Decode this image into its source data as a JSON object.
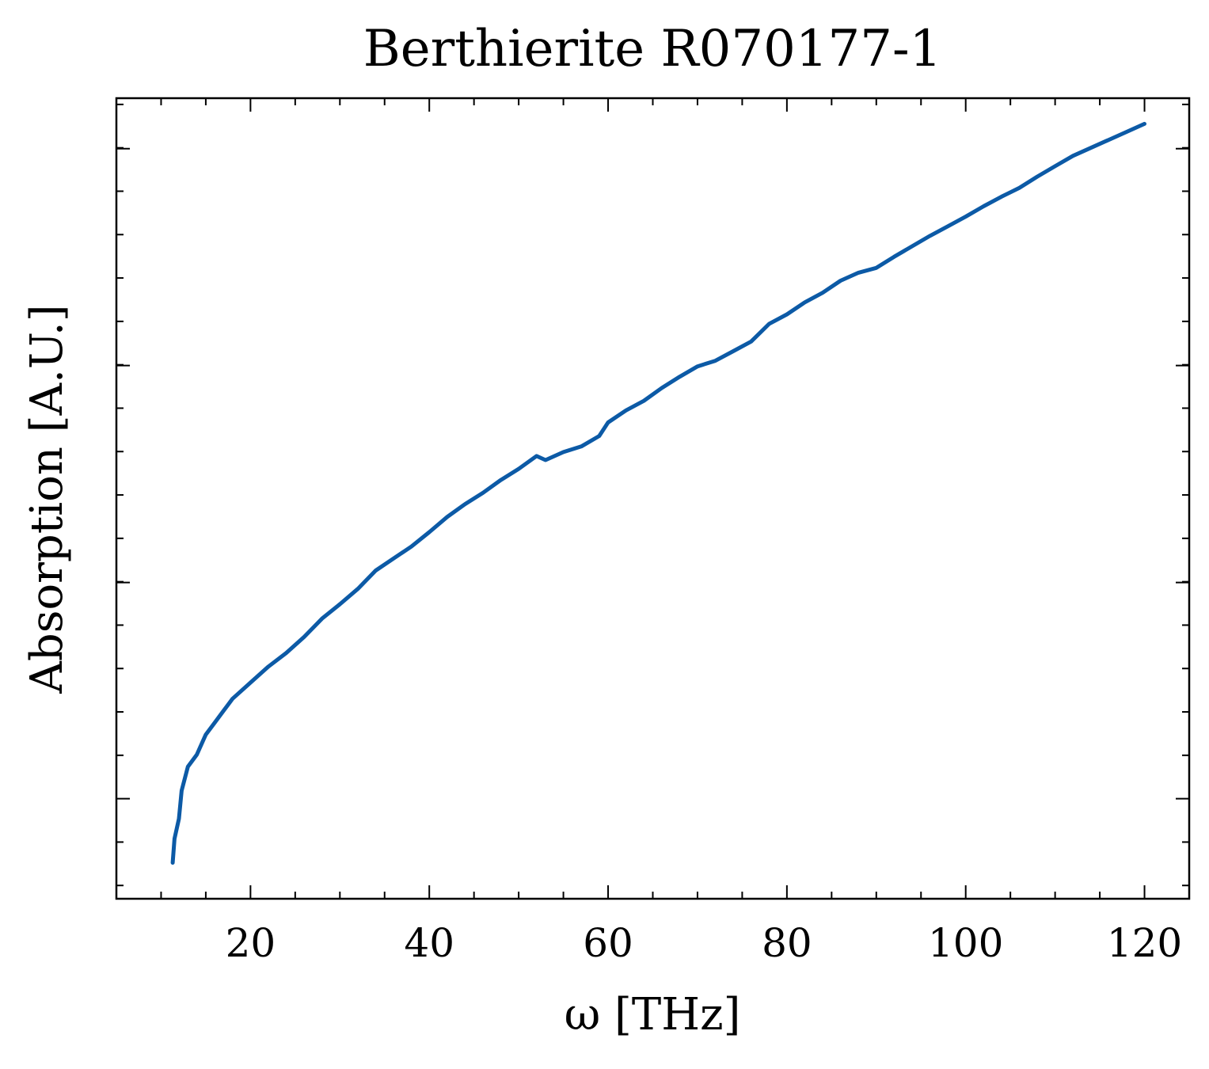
{
  "chart_data": {
    "type": "line",
    "title": "Berthierite R070177-1",
    "xlabel": "ω [THz]",
    "ylabel": "Absorption [A.U.]",
    "xlim": [
      5,
      125
    ],
    "ylim": [
      0.0,
      1.0
    ],
    "xticks": [
      20,
      40,
      60,
      80,
      100,
      120
    ],
    "xtick_labels": [
      "20",
      "40",
      "60",
      "80",
      "100",
      "120"
    ],
    "x_minor_step": 5,
    "yticks": [
      0.125,
      0.395,
      0.666,
      0.937
    ],
    "y_minor_step": 0.0542,
    "y_tick_labels_shown": false,
    "grid": false,
    "line_color": "#0c5aa6",
    "series": [
      {
        "x": [
          11.3,
          11.5,
          12.0,
          12.3,
          13.0,
          14.0,
          15.0,
          16.0,
          17.0,
          18.0,
          20.0,
          22.0,
          24.0,
          26.0,
          28.0,
          30.0,
          32.0,
          34.0,
          36.0,
          38.0,
          40.0,
          42.0,
          44.0,
          46.0,
          48.0,
          50.0,
          52.0,
          53.0,
          55.0,
          57.0,
          59.0,
          60.0,
          62.0,
          64.0,
          66.0,
          68.0,
          70.0,
          72.0,
          74.0,
          76.0,
          78.0,
          80.0,
          82.0,
          84.0,
          86.0,
          88.0,
          90.0,
          92.0,
          94.0,
          96.0,
          98.0,
          100.0,
          102.0,
          104.0,
          106.0,
          108.0,
          110.0,
          112.0,
          114.0,
          116.0,
          118.0,
          120.0
        ],
        "y": [
          0.045,
          0.075,
          0.1,
          0.135,
          0.165,
          0.18,
          0.205,
          0.22,
          0.235,
          0.25,
          0.27,
          0.29,
          0.307,
          0.327,
          0.35,
          0.368,
          0.387,
          0.41,
          0.425,
          0.44,
          0.458,
          0.477,
          0.493,
          0.507,
          0.523,
          0.537,
          0.553,
          0.548,
          0.558,
          0.565,
          0.578,
          0.595,
          0.61,
          0.622,
          0.638,
          0.652,
          0.665,
          0.672,
          0.684,
          0.696,
          0.718,
          0.73,
          0.745,
          0.757,
          0.772,
          0.782,
          0.788,
          0.802,
          0.815,
          0.828,
          0.84,
          0.852,
          0.865,
          0.877,
          0.888,
          0.902,
          0.915,
          0.928,
          0.938,
          0.948,
          0.958,
          0.968
        ]
      }
    ]
  }
}
